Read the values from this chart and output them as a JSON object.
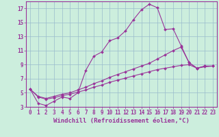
{
  "xlabel": "Windchill (Refroidissement éolien,°C)",
  "bg_color": "#cceedd",
  "line_color": "#993399",
  "xlim": [
    -0.5,
    23.5
  ],
  "ylim": [
    3,
    18
  ],
  "yticks": [
    3,
    5,
    7,
    9,
    11,
    13,
    15,
    17
  ],
  "xticks": [
    0,
    1,
    2,
    3,
    4,
    5,
    6,
    7,
    8,
    9,
    10,
    11,
    12,
    13,
    14,
    15,
    16,
    17,
    18,
    19,
    20,
    21,
    22,
    23
  ],
  "line1_x": [
    0,
    1,
    2,
    3,
    4,
    5,
    6,
    7,
    8,
    9,
    10,
    11,
    12,
    13,
    14,
    15,
    16,
    17,
    18,
    19,
    20,
    21,
    22,
    23
  ],
  "line1_y": [
    5.5,
    3.5,
    3.2,
    3.8,
    4.4,
    4.2,
    5.0,
    8.2,
    10.2,
    10.8,
    12.4,
    12.8,
    13.8,
    15.4,
    16.8,
    17.6,
    17.1,
    14.0,
    14.1,
    11.7,
    9.3,
    8.5,
    8.8,
    8.8
  ],
  "line2_x": [
    0,
    1,
    2,
    3,
    4,
    5,
    6,
    7,
    8,
    9,
    10,
    11,
    12,
    13,
    14,
    15,
    16,
    17,
    18,
    19,
    20,
    21,
    22,
    23
  ],
  "line2_y": [
    5.5,
    4.5,
    4.2,
    4.5,
    4.8,
    5.0,
    5.4,
    5.8,
    6.3,
    6.7,
    7.2,
    7.6,
    8.0,
    8.4,
    8.8,
    9.2,
    9.8,
    10.4,
    11.0,
    11.5,
    9.3,
    8.5,
    8.8,
    8.8
  ],
  "line3_x": [
    0,
    1,
    2,
    3,
    4,
    5,
    6,
    7,
    8,
    9,
    10,
    11,
    12,
    13,
    14,
    15,
    16,
    17,
    18,
    19,
    20,
    21,
    22,
    23
  ],
  "line3_y": [
    5.5,
    4.4,
    4.1,
    4.3,
    4.6,
    4.8,
    5.1,
    5.4,
    5.8,
    6.1,
    6.5,
    6.8,
    7.1,
    7.4,
    7.7,
    8.0,
    8.3,
    8.5,
    8.7,
    8.9,
    9.0,
    8.5,
    8.7,
    8.8
  ],
  "grid_color": "#99bbcc",
  "tick_fontsize": 5.5,
  "xlabel_fontsize": 6.5
}
